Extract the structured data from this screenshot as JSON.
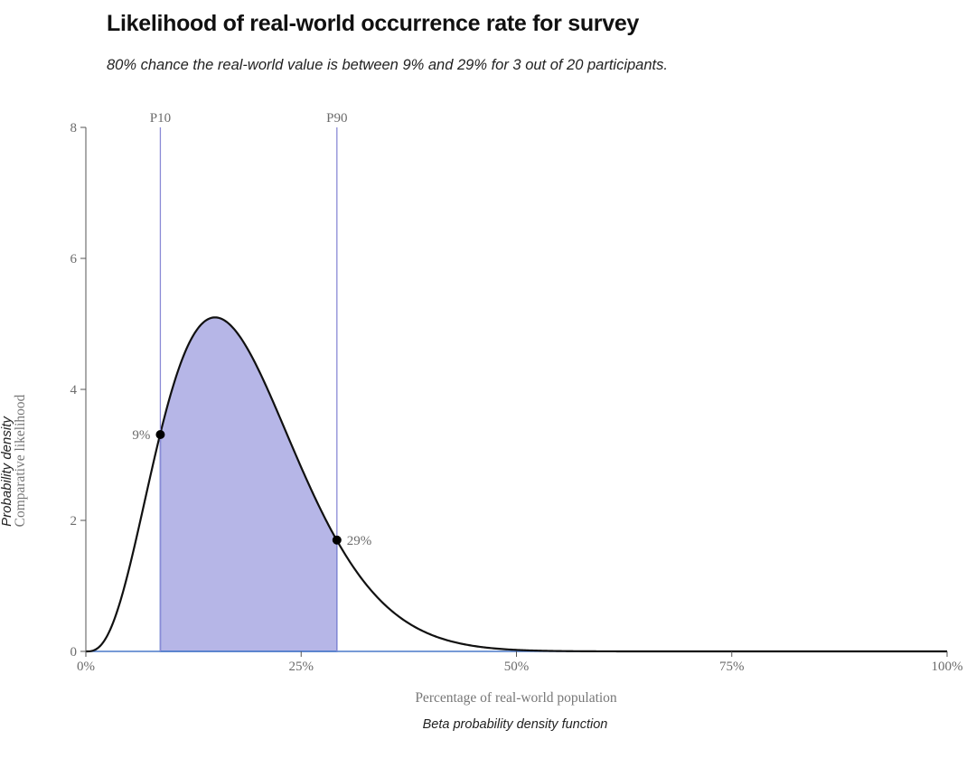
{
  "header": {
    "title": "Likelihood of real-world occurrence rate for survey",
    "subtitle": "80% chance the real-world value is between 9% and 29% for 3 out of 20 participants."
  },
  "footer": {
    "caption": "Beta probability density function"
  },
  "colors": {
    "fill": "#b6b6e7",
    "curve": "#111111",
    "baseline": "#4a78c9",
    "marker_line": "#8a8ad6",
    "axis": "#555555"
  },
  "chart_data": {
    "type": "area",
    "distribution": {
      "name": "beta",
      "alpha": 4,
      "beta": 18
    },
    "x_range": [
      0,
      1
    ],
    "ylim": [
      0,
      8
    ],
    "xlabel": "Percentage of real-world population",
    "ylabel": "Comparative likelihood",
    "ylabel_secondary": "Probability density",
    "x_ticks": [
      {
        "value": 0,
        "label": "0%"
      },
      {
        "value": 0.25,
        "label": "25%"
      },
      {
        "value": 0.5,
        "label": "50%"
      },
      {
        "value": 0.75,
        "label": "75%"
      },
      {
        "value": 1,
        "label": "100%"
      }
    ],
    "y_ticks": [
      {
        "value": 0,
        "label": "0"
      },
      {
        "value": 2,
        "label": "2"
      },
      {
        "value": 4,
        "label": "4"
      },
      {
        "value": 6,
        "label": "6"
      },
      {
        "value": 8,
        "label": "8"
      }
    ],
    "shaded_interval": [
      0.0865,
      0.2915
    ],
    "markers": [
      {
        "name": "P10",
        "x": 0.0865,
        "y": 3.31,
        "label": "9%"
      },
      {
        "name": "P90",
        "x": 0.2915,
        "y": 1.7,
        "label": "29%"
      }
    ],
    "grid": false,
    "legend": "none"
  }
}
